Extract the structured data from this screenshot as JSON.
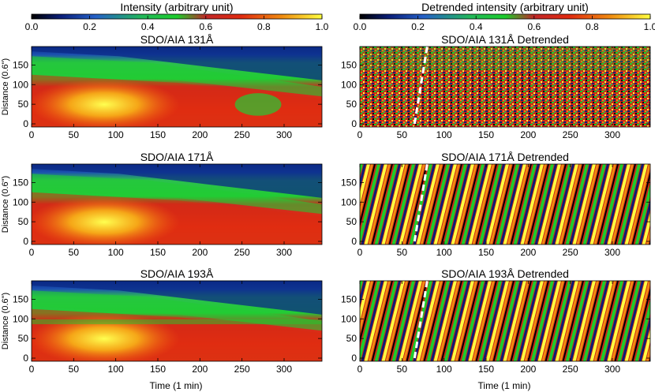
{
  "chart_data": {
    "type": "heatmap",
    "figure": "Time-distance maps of SDO/AIA intensity and detrended intensity",
    "colorbars": [
      {
        "title": "Intensity (arbitrary unit)",
        "ticks": [
          "0.0",
          "0.2",
          "0.4",
          "0.6",
          "0.8",
          "1.0"
        ],
        "range": [
          0.0,
          1.0
        ]
      },
      {
        "title": "Detrended intensity (arbitrary unit)",
        "ticks": [
          "0.0",
          "0.2",
          "0.4",
          "0.6",
          "0.8",
          "1.0"
        ],
        "range": [
          0.0,
          1.0
        ]
      }
    ],
    "xlim": [
      0,
      345
    ],
    "ylim": [
      -8,
      197
    ],
    "xticks": [
      0,
      50,
      100,
      150,
      200,
      250,
      300
    ],
    "yticks": [
      0,
      50,
      100,
      150
    ],
    "xlabel": "Time (1 min)",
    "ylabel": "Distance (0.6\")",
    "panels": [
      {
        "title": "SDO/AIA 131Å",
        "column": "intensity",
        "channel": "131",
        "dashed_line": null
      },
      {
        "title": "SDO/AIA 131Å Detrended",
        "column": "detrended",
        "channel": "131",
        "dashed_line": {
          "x": [
            65,
            80
          ],
          "y": [
            0,
            197
          ]
        }
      },
      {
        "title": "SDO/AIA 171Å",
        "column": "intensity",
        "channel": "171",
        "dashed_line": null
      },
      {
        "title": "SDO/AIA 171Å Detrended",
        "column": "detrended",
        "channel": "171",
        "dashed_line": {
          "x": [
            65,
            80
          ],
          "y": [
            0,
            197
          ]
        }
      },
      {
        "title": "SDO/AIA 193Å",
        "column": "intensity",
        "channel": "193",
        "dashed_line": null
      },
      {
        "title": "SDO/AIA 193Å Detrended",
        "column": "detrended",
        "channel": "193",
        "dashed_line": {
          "x": [
            65,
            80
          ],
          "y": [
            0,
            197
          ]
        }
      }
    ]
  },
  "colors": {
    "colormap": [
      "#000000",
      "#0a1e78",
      "#2460c8",
      "#22b85a",
      "#1ccc2c",
      "#c02828",
      "#e02a10",
      "#f08a10",
      "#ffff40"
    ],
    "dashed_line": "#ffffff"
  }
}
